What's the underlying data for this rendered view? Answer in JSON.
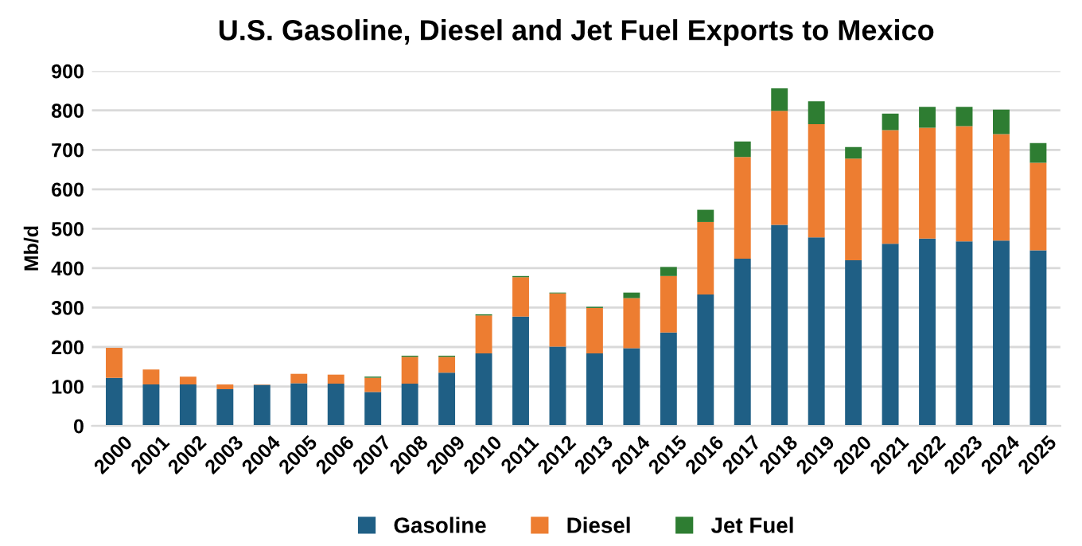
{
  "chart_data": {
    "type": "bar",
    "title": "U.S. Gasoline, Diesel and Jet Fuel Exports to Mexico",
    "ylabel": "Mb/d",
    "categories": [
      "2000",
      "2001",
      "2002",
      "2003",
      "2004",
      "2005",
      "2006",
      "2007",
      "2008",
      "2009",
      "2010",
      "2011",
      "2012",
      "2013",
      "2014",
      "2015",
      "2016",
      "2017",
      "2018",
      "2019",
      "2020",
      "2021",
      "2022",
      "2023",
      "2024",
      "2025"
    ],
    "stacked": true,
    "series": [
      {
        "name": "Gasoline",
        "color": "#1f5f85",
        "values": [
          122,
          105,
          105,
          93,
          104,
          108,
          107,
          86,
          107,
          135,
          184,
          277,
          201,
          184,
          197,
          237,
          333,
          424,
          510,
          478,
          420,
          462,
          475,
          468,
          470,
          445
        ]
      },
      {
        "name": "Diesel",
        "color": "#ed7d31",
        "values": [
          76,
          38,
          20,
          12,
          1,
          24,
          23,
          36,
          68,
          40,
          96,
          100,
          135,
          115,
          127,
          143,
          184,
          258,
          289,
          287,
          258,
          288,
          281,
          292,
          270,
          222
        ]
      },
      {
        "name": "Jet Fuel",
        "color": "#2e7d32",
        "values": [
          0,
          0,
          0,
          0,
          0,
          0,
          0,
          3,
          3,
          3,
          3,
          3,
          2,
          3,
          14,
          23,
          31,
          39,
          57,
          58,
          29,
          42,
          53,
          49,
          62,
          50
        ]
      }
    ],
    "ylim": [
      0,
      900
    ],
    "yticks": [
      0,
      100,
      200,
      300,
      400,
      500,
      600,
      700,
      800,
      900
    ],
    "grid": "y",
    "legend": "bottom"
  }
}
